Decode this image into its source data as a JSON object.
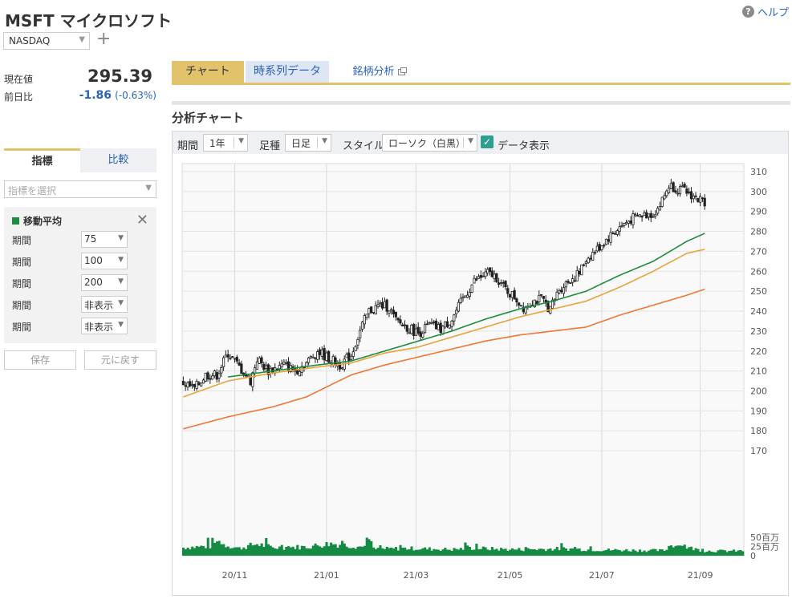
{
  "header": {
    "title": "MSFT マイクロソフト",
    "help_label": "ヘルプ",
    "exchange": "NASDAQ"
  },
  "quote": {
    "price_label": "現在値",
    "price": "295.39",
    "change_label": "前日比",
    "change": "-1.86",
    "change_pct": "(-0.63%)"
  },
  "sidebar": {
    "tabs": [
      "指標",
      "比較"
    ],
    "indicator_placeholder": "指標を選択",
    "ma_title": "移動平均",
    "rows": [
      {
        "label": "期間",
        "value": "75"
      },
      {
        "label": "期間",
        "value": "100"
      },
      {
        "label": "期間",
        "value": "200"
      },
      {
        "label": "期間",
        "value": "非表示"
      },
      {
        "label": "期間",
        "value": "非表示"
      }
    ],
    "save_label": "保存",
    "reset_label": "元に戻す"
  },
  "main": {
    "tabs": [
      "チャート",
      "時系列データ",
      "銘柄分析"
    ],
    "section_title": "分析チャート",
    "toolbar": {
      "period_label": "期間",
      "period_value": "1年",
      "foot_label": "足種",
      "foot_value": "日足",
      "style_label": "スタイル",
      "style_value": "ローソク（白黒）",
      "data_display_label": "データ表示"
    }
  },
  "colors": {
    "ma75": "#1e8c3e",
    "ma100": "#e8a33a",
    "ma200": "#ee7834",
    "volume": "#148a43",
    "accent": "#e2c26b",
    "link": "#2a63b8"
  },
  "chart_data": {
    "type": "candlestick",
    "price_axis": {
      "min": 170,
      "max": 310,
      "ticks": [
        310,
        300,
        290,
        280,
        270,
        260,
        250,
        240,
        230,
        220,
        210,
        200,
        190,
        180,
        170
      ]
    },
    "volume_axis": {
      "ticks": [
        "50百万",
        "25百万",
        "0"
      ],
      "max": 50
    },
    "x_ticks": [
      {
        "label": "20/11",
        "index": 23
      },
      {
        "label": "21/01",
        "index": 64
      },
      {
        "label": "21/03",
        "index": 104
      },
      {
        "label": "21/05",
        "index": 146
      },
      {
        "label": "21/07",
        "index": 187
      },
      {
        "label": "21/09",
        "index": 231
      }
    ],
    "n_days": 251,
    "close_anchors": [
      [
        0,
        204
      ],
      [
        5,
        201
      ],
      [
        10,
        208
      ],
      [
        15,
        208
      ],
      [
        20,
        219
      ],
      [
        25,
        212
      ],
      [
        30,
        205
      ],
      [
        33,
        216
      ],
      [
        38,
        210
      ],
      [
        45,
        213
      ],
      [
        50,
        210
      ],
      [
        55,
        214
      ],
      [
        60,
        220
      ],
      [
        64,
        217
      ],
      [
        70,
        213
      ],
      [
        75,
        218
      ],
      [
        80,
        233
      ],
      [
        83,
        240
      ],
      [
        88,
        243
      ],
      [
        92,
        242
      ],
      [
        95,
        235
      ],
      [
        100,
        232
      ],
      [
        105,
        229
      ],
      [
        110,
        233
      ],
      [
        115,
        231
      ],
      [
        120,
        236
      ],
      [
        125,
        246
      ],
      [
        130,
        255
      ],
      [
        136,
        259
      ],
      [
        140,
        257
      ],
      [
        143,
        252
      ],
      [
        148,
        247
      ],
      [
        152,
        242
      ],
      [
        156,
        245
      ],
      [
        160,
        246
      ],
      [
        164,
        241
      ],
      [
        168,
        251
      ],
      [
        172,
        255
      ],
      [
        177,
        259
      ],
      [
        180,
        266
      ],
      [
        185,
        271
      ],
      [
        190,
        277
      ],
      [
        195,
        282
      ],
      [
        200,
        286
      ],
      [
        205,
        288
      ],
      [
        210,
        289
      ],
      [
        213,
        293
      ],
      [
        217,
        303
      ],
      [
        222,
        301
      ],
      [
        226,
        299
      ],
      [
        230,
        296
      ],
      [
        233,
        295
      ]
    ],
    "ma75_anchors": [
      [
        20,
        207
      ],
      [
        40,
        210
      ],
      [
        60,
        213
      ],
      [
        75,
        215
      ],
      [
        90,
        220
      ],
      [
        105,
        225
      ],
      [
        120,
        230
      ],
      [
        135,
        236
      ],
      [
        150,
        241
      ],
      [
        165,
        245
      ],
      [
        180,
        250
      ],
      [
        195,
        258
      ],
      [
        210,
        265
      ],
      [
        225,
        275
      ],
      [
        233,
        279
      ]
    ],
    "ma100_anchors": [
      [
        0,
        197
      ],
      [
        20,
        205
      ],
      [
        40,
        209
      ],
      [
        60,
        212
      ],
      [
        75,
        214
      ],
      [
        90,
        219
      ],
      [
        105,
        222
      ],
      [
        120,
        227
      ],
      [
        135,
        232
      ],
      [
        150,
        237
      ],
      [
        165,
        241
      ],
      [
        180,
        245
      ],
      [
        195,
        252
      ],
      [
        210,
        260
      ],
      [
        225,
        269
      ],
      [
        233,
        271
      ]
    ],
    "ma200_anchors": [
      [
        0,
        181
      ],
      [
        20,
        187
      ],
      [
        40,
        192
      ],
      [
        55,
        197
      ],
      [
        75,
        208
      ],
      [
        90,
        213
      ],
      [
        105,
        217
      ],
      [
        120,
        221
      ],
      [
        135,
        225
      ],
      [
        150,
        228
      ],
      [
        165,
        230
      ],
      [
        180,
        232
      ],
      [
        195,
        238
      ],
      [
        210,
        243
      ],
      [
        225,
        248
      ],
      [
        233,
        251
      ]
    ],
    "volume_anchors": [
      [
        0,
        22
      ],
      [
        12,
        26
      ],
      [
        13,
        38
      ],
      [
        25,
        20
      ],
      [
        33,
        32
      ],
      [
        40,
        22
      ],
      [
        55,
        24
      ],
      [
        66,
        33
      ],
      [
        80,
        24
      ],
      [
        82,
        45
      ],
      [
        85,
        18
      ],
      [
        100,
        20
      ],
      [
        120,
        17
      ],
      [
        130,
        21
      ],
      [
        140,
        18
      ],
      [
        150,
        17
      ],
      [
        170,
        19
      ],
      [
        185,
        16
      ],
      [
        200,
        15
      ],
      [
        215,
        14
      ],
      [
        218,
        31
      ],
      [
        233,
        13
      ]
    ]
  }
}
